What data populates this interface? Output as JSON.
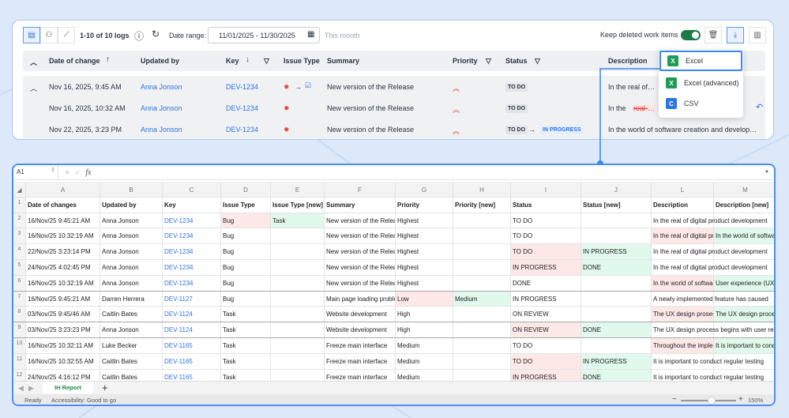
{
  "toolbar": {
    "count": "1-10 of 10 logs",
    "date_label": "Date range:",
    "date_value": "11/01/2025 - 11/30/2025",
    "date_hint": "This month",
    "keep_deleted": "Keep deleted work items"
  },
  "table": {
    "headers": {
      "date": "Date of change",
      "updated_by": "Updated by",
      "key": "Key",
      "issue_type": "Issue Type",
      "summary": "Summary",
      "priority": "Priority",
      "status": "Status",
      "description": "Description"
    },
    "rows": [
      {
        "date": "Nov 16, 2025, 9:45 AM",
        "user": "Anna Jonson",
        "key": "DEV-1234",
        "summary": "New version of the Release",
        "status": "TO DO",
        "description": "In the real of digital product development user…"
      },
      {
        "date": "Nov 16, 2025, 10:32 AM",
        "user": "Anna Jonson",
        "key": "DEV-1234",
        "summary": "New version of the Release",
        "status": "TO DO",
        "desc_prefix": "In the",
        "desc_removed": "real-of-di"
      },
      {
        "date": "Nov 22, 2025, 3:23 PM",
        "user": "Anna Jonson",
        "key": "DEV-1234",
        "summary": "New version of the Release",
        "status": "TO DO",
        "status_new": "IN PROGRESS",
        "description": "In the world of software creation and develop…"
      }
    ]
  },
  "export_menu": {
    "items": [
      {
        "label": "Excel",
        "icon": "X",
        "color": "#1f9d55"
      },
      {
        "label": "Excel (advanced)",
        "icon": "X",
        "color": "#1f9d55"
      },
      {
        "label": "CSV",
        "icon": "C",
        "color": "#2f74e0"
      }
    ]
  },
  "sheet": {
    "cell_ref": "A1",
    "fx": "fx",
    "columns": [
      "A",
      "B",
      "C",
      "D",
      "E",
      "F",
      "G",
      "H",
      "I",
      "J",
      "L",
      "M"
    ],
    "header": [
      "Date of changes",
      "Updated by",
      "Key",
      "Issue Type",
      "Issue Type [new]",
      "Summary",
      "Priority",
      "Priority [new]",
      "Status",
      "Status [new]",
      "Description",
      "Description [new]"
    ],
    "rows": [
      [
        [
          "16/Nov/25 9:45:21 AM"
        ],
        [
          "Anna Jonson"
        ],
        [
          "DEV-1234"
        ],
        [
          "Bug",
          "red"
        ],
        [
          "Task",
          "green"
        ],
        [
          "New version of the Release"
        ],
        [
          "Highest"
        ],
        [
          ""
        ],
        [
          "TO DO"
        ],
        [
          ""
        ],
        [
          "In the real of digital product development"
        ],
        [
          ""
        ]
      ],
      [
        [
          "16/Nov/25 10:32:19 AM"
        ],
        [
          "Anna Jonson"
        ],
        [
          "DEV-1234"
        ],
        [
          "Bug"
        ],
        [
          ""
        ],
        [
          "New version of the Release"
        ],
        [
          "Highest"
        ],
        [
          ""
        ],
        [
          "TO DO"
        ],
        [
          ""
        ],
        [
          "In the real of digital product development",
          "red"
        ],
        [
          "In the world of software creation",
          "green"
        ]
      ],
      [
        [
          "22/Nov/25 3:23:14 PM"
        ],
        [
          "Anna Jonson"
        ],
        [
          "DEV-1234"
        ],
        [
          "Bug"
        ],
        [
          ""
        ],
        [
          "New version of the Release"
        ],
        [
          "Highest"
        ],
        [
          ""
        ],
        [
          "TO DO",
          "red"
        ],
        [
          "IN PROGRESS",
          "green"
        ],
        [
          "In the real of digital product development"
        ],
        [
          ""
        ]
      ],
      [
        [
          "24/Nov/25 4:02:45 PM"
        ],
        [
          "Anna Jonson"
        ],
        [
          "DEV-1234"
        ],
        [
          "Bug"
        ],
        [
          ""
        ],
        [
          "New version of the Release"
        ],
        [
          "Highest"
        ],
        [
          ""
        ],
        [
          "IN PROGRESS",
          "red"
        ],
        [
          "DONE",
          "green"
        ],
        [
          "In the real of digital product development"
        ],
        [
          ""
        ]
      ],
      [
        [
          "16/Nov/25 10:32:19 AM"
        ],
        [
          "Anna Jonson"
        ],
        [
          "DEV-1234"
        ],
        [
          "Bug"
        ],
        [
          ""
        ],
        [
          "New version of the Release"
        ],
        [
          "Highest"
        ],
        [
          ""
        ],
        [
          "DONE"
        ],
        [
          ""
        ],
        [
          "In the world of software creation",
          "red"
        ],
        [
          "User experience (UX)",
          "green"
        ]
      ],
      [
        [
          "16/Nov/25 9:45:21 AM"
        ],
        [
          "Darren Herrera"
        ],
        [
          "DEV-1127"
        ],
        [
          "Bug"
        ],
        [
          ""
        ],
        [
          "Main page loading problem"
        ],
        [
          "Low",
          "red"
        ],
        [
          "Medium",
          "green"
        ],
        [
          "IN PROGRESS"
        ],
        [
          ""
        ],
        [
          "A newly implemented feature has caused"
        ],
        [
          ""
        ]
      ],
      [
        [
          "03/Nov/25 9:45/46 AM"
        ],
        [
          "Caitlin Bates"
        ],
        [
          "DEV-1124"
        ],
        [
          "Task"
        ],
        [
          ""
        ],
        [
          "Website development"
        ],
        [
          "High"
        ],
        [
          ""
        ],
        [
          "ON REVIEW"
        ],
        [
          ""
        ],
        [
          "The UX design prosess",
          "red"
        ],
        [
          "The UX design process",
          "green"
        ]
      ],
      [
        [
          "03/Nov/25 3:23:23 PM"
        ],
        [
          "Anna Jonson"
        ],
        [
          "DEV-1124"
        ],
        [
          "Task"
        ],
        [
          ""
        ],
        [
          "Website development"
        ],
        [
          "High"
        ],
        [
          ""
        ],
        [
          "ON REVIEW",
          "red"
        ],
        [
          "DONE",
          "green"
        ],
        [
          "The UX design process begins with user research"
        ],
        [
          ""
        ]
      ],
      [
        [
          "16/Nov/25 10:32:11 AM"
        ],
        [
          "Luke Becker"
        ],
        [
          "DEV-1165"
        ],
        [
          "Task"
        ],
        [
          ""
        ],
        [
          "Freeze main interface"
        ],
        [
          "Medium"
        ],
        [
          ""
        ],
        [
          "TO DO"
        ],
        [
          ""
        ],
        [
          "Throughout the implementation",
          "red"
        ],
        [
          "It is important to conduct",
          "green"
        ]
      ],
      [
        [
          "16/Nov/25 10:32:55 AM"
        ],
        [
          "Caitlin Bates"
        ],
        [
          "DEV-1165"
        ],
        [
          "Task"
        ],
        [
          ""
        ],
        [
          "Freeze main interface"
        ],
        [
          "Medium"
        ],
        [
          ""
        ],
        [
          "TO DO",
          "red"
        ],
        [
          "IN PROGRESS",
          "green"
        ],
        [
          "It is important to conduct regular testing"
        ],
        [
          ""
        ]
      ],
      [
        [
          "24/Nov/25 4:16:12 PM"
        ],
        [
          "Caitlin Bates"
        ],
        [
          "DEV-1165"
        ],
        [
          "Task"
        ],
        [
          ""
        ],
        [
          "Freeze main interface"
        ],
        [
          "Medium"
        ],
        [
          ""
        ],
        [
          "IN PROGRESS",
          "red"
        ],
        [
          "DONE",
          "green"
        ],
        [
          "It is important to conduct regular testing"
        ],
        [
          ""
        ]
      ]
    ],
    "sheet_tab": "IH Report",
    "status_ready": "Ready",
    "accessibility": "Accessibility: Good to go",
    "zoom": "150%"
  }
}
